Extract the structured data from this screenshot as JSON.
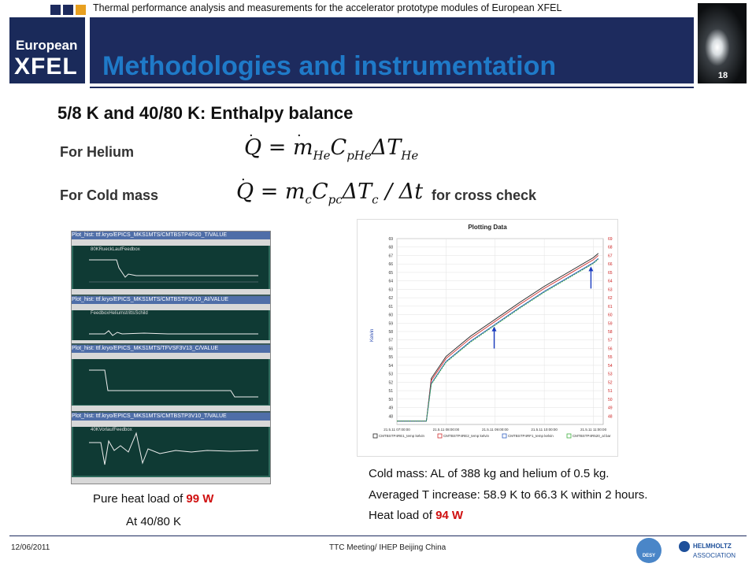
{
  "header": {
    "subtitle": "Thermal performance analysis and measurements for the accelerator prototype modules of European XFEL",
    "title": "Methodologies and instrumentation",
    "page_number": "18",
    "logo_line1": "European",
    "logo_line2": "XFEL"
  },
  "section": {
    "heading": "5/8 K and 40/80 K: Enthalpy balance",
    "helium_label": "For Helium",
    "coldmass_label": "For Cold mass",
    "cross_check": "for cross check"
  },
  "left_caption": {
    "line1_prefix": "Pure heat load of ",
    "line1_value": "99 W",
    "line2": "At 40/80 K"
  },
  "left_panels": [
    {
      "title": "Plot_hist: ttf.kryo/EPICS_MKS1MTS/CMTBSTP4R20_T/VALUE",
      "label": "80KRueckLaufFeedbox"
    },
    {
      "title": "Plot_hist: ttf.kryo/EPICS_MKS1MTS/CMTBSTP3V10_AI/VALUE",
      "label": "FeedboxHeliumstrittsSchild"
    },
    {
      "title": "Plot_hist: ttf.kryo/EPICS_MKS1MTS/TFVSF3V13_C/VALUE",
      "label": ""
    },
    {
      "title": "Plot_hist: ttf.kryo/EPICS_MKS1MTS/CMTBSTP3V10_T/VALUE",
      "label": "40KVorlaufFeedbox"
    }
  ],
  "right_caption": {
    "line1": "Cold mass: AL of 388 kg and helium of 0.5 kg.",
    "line2": "Averaged T increase: 58.9 K to 66.3 K within 2 hours.",
    "line3_prefix": "Heat load of ",
    "line3_value": "94 W"
  },
  "chart_data": {
    "type": "line",
    "title": "Plotting Data",
    "ylabel": "Kelvin",
    "ylim": [
      47,
      69
    ],
    "x_ticks": [
      "21.5.11 07:00:00",
      "21.5.11 08:00:00",
      "21.5.11 09:00:00",
      "21.5.11 10:00:00",
      "21.5.11 11:00:00"
    ],
    "y_ticks": [
      48,
      49,
      50,
      51,
      52,
      53,
      54,
      55,
      56,
      57,
      58,
      59,
      60,
      61,
      62,
      63,
      64,
      65,
      66,
      67,
      68,
      69
    ],
    "series": [
      {
        "name": "CMTBSTP4RE1_temp kelvin",
        "color": "#222222"
      },
      {
        "name": "CMTBSTP4RE2_temp kelvin",
        "color": "#d03030"
      },
      {
        "name": "CMTBSTP4RF1_temp kelvin",
        "color": "#3060c0"
      },
      {
        "name": "CMTBSTP4R520_al bar",
        "color": "#40b040"
      }
    ],
    "x_hours": [
      7.0,
      7.6,
      7.7,
      8.0,
      8.5,
      9.0,
      9.5,
      10.0,
      10.5,
      11.0,
      11.1
    ],
    "values": [
      47.4,
      47.4,
      52.0,
      54.6,
      57.0,
      59.0,
      61.0,
      62.9,
      64.6,
      66.3,
      66.8
    ]
  },
  "footer": {
    "date": "12/06/2011",
    "event": "TTC Meeting/ IHEP Beijing China",
    "logo_desy": "DESY",
    "logo_helmholtz1": "HELMHOLTZ",
    "logo_helmholtz2": "ASSOCIATION"
  },
  "colors": {
    "navy": "#1d2b5e",
    "title_blue": "#1f7ac8",
    "accent_red": "#d01010",
    "arrow_blue": "#1a3cc0"
  }
}
